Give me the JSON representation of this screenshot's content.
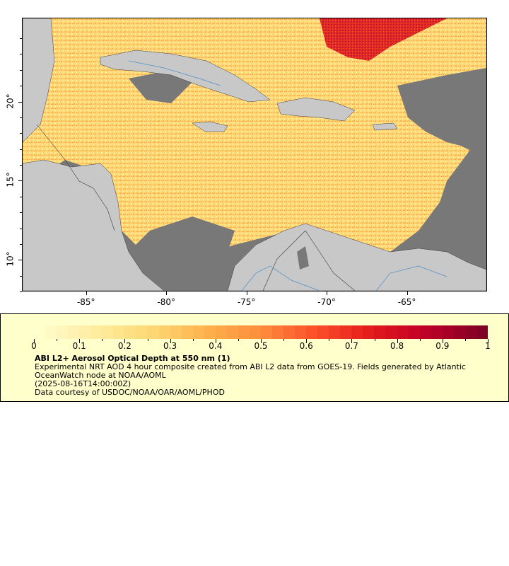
{
  "map": {
    "colors": {
      "land": "#c8c8c8",
      "ocean_no_data": "#787878",
      "borders": "#3c3c3c",
      "rivers": "#4a90c8",
      "frame": "#000000"
    },
    "y_axis": {
      "ticks": [
        {
          "value": 20,
          "label": "20°"
        },
        {
          "value": 15,
          "label": "15°"
        },
        {
          "value": 10,
          "label": "10°"
        }
      ]
    },
    "x_axis": {
      "ticks": [
        {
          "value": -85,
          "label": "-85°"
        },
        {
          "value": -80,
          "label": "-80°"
        },
        {
          "value": -75,
          "label": "-75°"
        },
        {
          "value": -70,
          "label": "-70°"
        },
        {
          "value": -65,
          "label": "-65°"
        }
      ]
    },
    "lon_range": [
      -89,
      -60
    ],
    "lat_range": [
      8,
      25.3
    ],
    "field_overlay_colors": [
      "#ffeda0",
      "#fed976",
      "#feb24c",
      "#fd8d3c",
      "#fc4e2a",
      "#e31a1c",
      "#bd0026"
    ]
  },
  "legend": {
    "background": "#ffffcc",
    "colormap": [
      "#ffffcc",
      "#fff4b8",
      "#ffeda0",
      "#fee38a",
      "#fed976",
      "#fec562",
      "#feb24c",
      "#fd9f44",
      "#fd8d3c",
      "#fc6e33",
      "#fc4e2a",
      "#f03523",
      "#e31a1c",
      "#d00d21",
      "#bd0026",
      "#a00026",
      "#800026"
    ],
    "ticks": [
      "0",
      "0.1",
      "0.2",
      "0.3",
      "0.4",
      "0.5",
      "0.6",
      "0.7",
      "0.8",
      "0.9",
      "1"
    ],
    "title": "ABI L2+ Aerosol Optical Depth at 550 nm (1)",
    "description": "Experimental NRT AOD 4 hour composite created from ABI L2 data from GOES-19. Fields generated by Atlantic OceanWatch node at NOAA/AOML",
    "timestamp": "(2025-08-16T14:00:00Z)",
    "credit": "Data courtesy of USDOC/NOAA/OAR/AOML/PHOD"
  }
}
